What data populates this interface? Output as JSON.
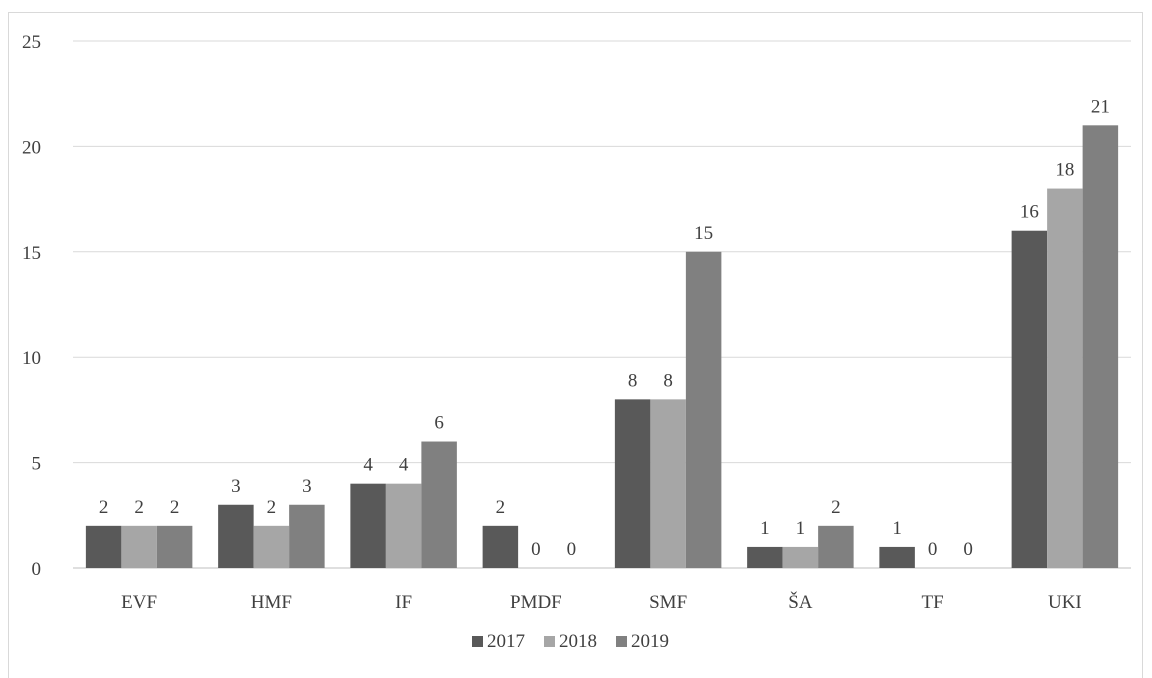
{
  "chart_data": {
    "type": "bar",
    "title": "",
    "xlabel": "",
    "ylabel": "",
    "categories": [
      "EVF",
      "HMF",
      "IF",
      "PMDF",
      "SMF",
      "ŠA",
      "TF",
      "UKI"
    ],
    "series": [
      {
        "name": "2017",
        "color": "#595959",
        "values": [
          2,
          3,
          4,
          2,
          8,
          1,
          1,
          16
        ]
      },
      {
        "name": "2018",
        "color": "#a6a6a6",
        "values": [
          2,
          2,
          4,
          0,
          8,
          1,
          0,
          18
        ]
      },
      {
        "name": "2019",
        "color": "#808080",
        "values": [
          2,
          3,
          6,
          0,
          15,
          2,
          0,
          21
        ]
      }
    ],
    "ylim": [
      0,
      25
    ],
    "yticks": [
      0,
      5,
      10,
      15,
      20,
      25
    ],
    "grid": true,
    "legend_position": "bottom",
    "data_labels": true
  }
}
